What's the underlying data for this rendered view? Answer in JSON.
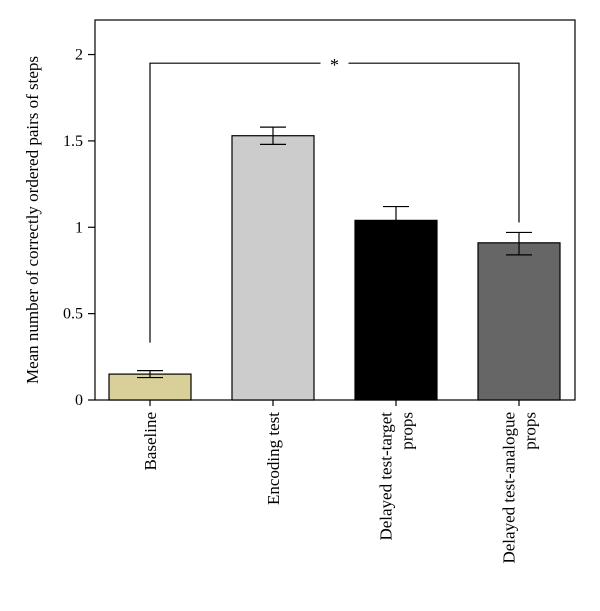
{
  "chart_data": {
    "type": "bar",
    "ylabel": "Mean number of correctly ordered pairs of steps",
    "ylim": [
      0,
      2.2
    ],
    "yticks": [
      0,
      0.5,
      1,
      1.5,
      2
    ],
    "ytick_labels": [
      "0",
      "0.5",
      "1",
      "1.5",
      "2"
    ],
    "categories": [
      [
        "Baseline"
      ],
      [
        "Encoding test"
      ],
      [
        "Delayed test-target",
        "props"
      ],
      [
        "Delayed test-analogue",
        "props"
      ]
    ],
    "values": [
      0.15,
      1.53,
      1.04,
      0.91
    ],
    "error_low": [
      0.13,
      1.48,
      0.97,
      0.84
    ],
    "error_high": [
      0.17,
      1.58,
      1.12,
      0.97
    ],
    "colors": [
      "#d9cf99",
      "#cccccc",
      "#000000",
      "#666666"
    ],
    "significance": {
      "label": "*",
      "from_category": 0,
      "to_category": 3,
      "height": 1.95
    },
    "grid": false,
    "legend": "none"
  }
}
